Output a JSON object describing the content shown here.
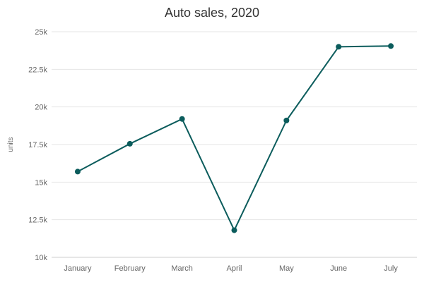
{
  "chart_data": {
    "type": "line",
    "title": "Auto sales, 2020",
    "xlabel": "",
    "ylabel": "units",
    "categories": [
      "January",
      "February",
      "March",
      "April",
      "May",
      "June",
      "July"
    ],
    "series": [
      {
        "values": [
          15700,
          17550,
          19200,
          11800,
          19100,
          24000,
          24050
        ]
      }
    ],
    "ylim": [
      10000,
      25000
    ],
    "yticks": [
      10000,
      12500,
      15000,
      17500,
      20000,
      22500,
      25000
    ],
    "ytick_labels": [
      "10k",
      "12.5k",
      "15k",
      "17.5k",
      "20k",
      "22.5k",
      "25k"
    ],
    "grid": true,
    "legend": "none",
    "colors": {
      "line": "#0b5c5c",
      "marker": "#0b5c5c"
    }
  }
}
